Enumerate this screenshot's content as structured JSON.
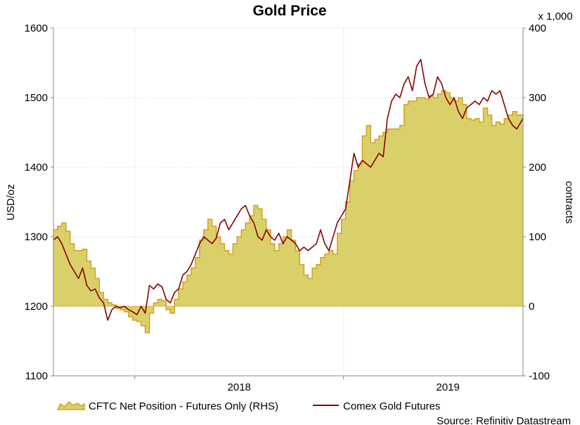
{
  "chart_data": {
    "type": "area+line",
    "title": "Gold Price",
    "ylabel_left": "USD/oz",
    "ylabel_right": "contracts",
    "right_axis_multiplier": "x 1,000",
    "ylim_left": [
      1100,
      1600
    ],
    "ylim_right": [
      -100,
      400
    ],
    "yticks_left": [
      "1100",
      "1200",
      "1300",
      "1400",
      "1500",
      "1600"
    ],
    "yticks_right": [
      "-100",
      "0",
      "100",
      "200",
      "300",
      "400"
    ],
    "x_ticks": [
      "2018",
      "2019"
    ],
    "xlim": [
      2017.61,
      2019.86
    ],
    "grid": true,
    "legend_position": "bottom",
    "source": "Source: Refinitiv Datastream",
    "colors": {
      "area_fill": "#d9d06a",
      "area_edge": "#d4a020",
      "line": "#8b0000"
    },
    "series": [
      {
        "name": "CFTC Net Position - Futures Only (RHS)",
        "axis": "right",
        "kind": "area",
        "x": [
          2017.61,
          2017.63,
          2017.65,
          2017.67,
          2017.69,
          2017.71,
          2017.73,
          2017.75,
          2017.77,
          2017.79,
          2017.81,
          2017.83,
          2017.85,
          2017.87,
          2017.89,
          2017.91,
          2017.93,
          2017.95,
          2017.97,
          2017.99,
          2018.01,
          2018.03,
          2018.05,
          2018.07,
          2018.09,
          2018.11,
          2018.13,
          2018.15,
          2018.17,
          2018.19,
          2018.21,
          2018.23,
          2018.25,
          2018.27,
          2018.29,
          2018.31,
          2018.33,
          2018.35,
          2018.37,
          2018.39,
          2018.41,
          2018.43,
          2018.45,
          2018.47,
          2018.49,
          2018.51,
          2018.53,
          2018.55,
          2018.57,
          2018.59,
          2018.61,
          2018.63,
          2018.65,
          2018.67,
          2018.69,
          2018.71,
          2018.73,
          2018.75,
          2018.77,
          2018.79,
          2018.81,
          2018.83,
          2018.85,
          2018.87,
          2018.89,
          2018.91,
          2018.93,
          2018.95,
          2018.97,
          2018.99,
          2019.01,
          2019.03,
          2019.05,
          2019.07,
          2019.09,
          2019.11,
          2019.13,
          2019.15,
          2019.17,
          2019.19,
          2019.21,
          2019.23,
          2019.25,
          2019.27,
          2019.29,
          2019.31,
          2019.33,
          2019.35,
          2019.37,
          2019.39,
          2019.41,
          2019.43,
          2019.45,
          2019.47,
          2019.49,
          2019.51,
          2019.53,
          2019.55,
          2019.57,
          2019.59,
          2019.61,
          2019.63,
          2019.65,
          2019.67,
          2019.69,
          2019.71,
          2019.73,
          2019.75,
          2019.77,
          2019.79,
          2019.81,
          2019.83,
          2019.86
        ],
        "values": [
          110,
          115,
          120,
          108,
          90,
          80,
          80,
          82,
          65,
          55,
          40,
          20,
          10,
          5,
          2,
          -3,
          -5,
          -8,
          -15,
          -20,
          -22,
          -28,
          -38,
          -10,
          5,
          10,
          8,
          -5,
          -10,
          10,
          25,
          35,
          45,
          55,
          70,
          95,
          110,
          125,
          115,
          100,
          90,
          80,
          75,
          90,
          100,
          110,
          120,
          130,
          145,
          140,
          125,
          110,
          90,
          80,
          90,
          100,
          110,
          95,
          80,
          60,
          45,
          40,
          55,
          60,
          70,
          75,
          80,
          75,
          105,
          125,
          150,
          180,
          195,
          205,
          245,
          260,
          235,
          240,
          245,
          250,
          255,
          255,
          255,
          260,
          290,
          295,
          295,
          300,
          300,
          298,
          303,
          300,
          305,
          310,
          307,
          300,
          295,
          300,
          290,
          270,
          268,
          270,
          265,
          285,
          275,
          260,
          265,
          262,
          270,
          275,
          280,
          275,
          270
        ]
      },
      {
        "name": "Comex Gold Futures",
        "axis": "left",
        "kind": "line",
        "x": [
          2017.61,
          2017.63,
          2017.65,
          2017.67,
          2017.69,
          2017.71,
          2017.73,
          2017.75,
          2017.77,
          2017.79,
          2017.81,
          2017.83,
          2017.85,
          2017.87,
          2017.89,
          2017.91,
          2017.93,
          2017.95,
          2017.97,
          2017.99,
          2018.01,
          2018.03,
          2018.05,
          2018.07,
          2018.09,
          2018.11,
          2018.13,
          2018.15,
          2018.17,
          2018.19,
          2018.21,
          2018.23,
          2018.25,
          2018.27,
          2018.29,
          2018.31,
          2018.33,
          2018.35,
          2018.37,
          2018.39,
          2018.41,
          2018.43,
          2018.45,
          2018.47,
          2018.49,
          2018.51,
          2018.53,
          2018.55,
          2018.57,
          2018.59,
          2018.61,
          2018.63,
          2018.65,
          2018.67,
          2018.69,
          2018.71,
          2018.73,
          2018.75,
          2018.77,
          2018.79,
          2018.81,
          2018.83,
          2018.85,
          2018.87,
          2018.89,
          2018.91,
          2018.93,
          2018.95,
          2018.97,
          2018.99,
          2019.01,
          2019.03,
          2019.05,
          2019.07,
          2019.09,
          2019.11,
          2019.13,
          2019.15,
          2019.17,
          2019.19,
          2019.21,
          2019.23,
          2019.25,
          2019.27,
          2019.29,
          2019.31,
          2019.33,
          2019.35,
          2019.37,
          2019.39,
          2019.41,
          2019.43,
          2019.45,
          2019.47,
          2019.49,
          2019.51,
          2019.53,
          2019.55,
          2019.57,
          2019.59,
          2019.61,
          2019.63,
          2019.65,
          2019.67,
          2019.69,
          2019.71,
          2019.73,
          2019.75,
          2019.77,
          2019.79,
          2019.81,
          2019.83,
          2019.86
        ],
        "values": [
          1295,
          1300,
          1290,
          1275,
          1260,
          1250,
          1240,
          1255,
          1230,
          1222,
          1225,
          1212,
          1205,
          1180,
          1195,
          1200,
          1198,
          1200,
          1195,
          1192,
          1188,
          1200,
          1190,
          1230,
          1225,
          1232,
          1228,
          1210,
          1205,
          1220,
          1225,
          1245,
          1250,
          1260,
          1275,
          1290,
          1300,
          1295,
          1290,
          1298,
          1320,
          1325,
          1310,
          1320,
          1330,
          1340,
          1345,
          1330,
          1320,
          1300,
          1295,
          1310,
          1300,
          1295,
          1305,
          1290,
          1300,
          1295,
          1290,
          1280,
          1285,
          1280,
          1285,
          1290,
          1310,
          1290,
          1280,
          1300,
          1320,
          1330,
          1340,
          1380,
          1420,
          1400,
          1410,
          1405,
          1400,
          1410,
          1420,
          1415,
          1470,
          1495,
          1505,
          1500,
          1520,
          1530,
          1510,
          1545,
          1555,
          1520,
          1500,
          1505,
          1530,
          1520,
          1500,
          1490,
          1500,
          1480,
          1470,
          1485,
          1490,
          1495,
          1490,
          1500,
          1495,
          1510,
          1505,
          1510,
          1490,
          1470,
          1460,
          1455,
          1470
        ]
      }
    ]
  }
}
